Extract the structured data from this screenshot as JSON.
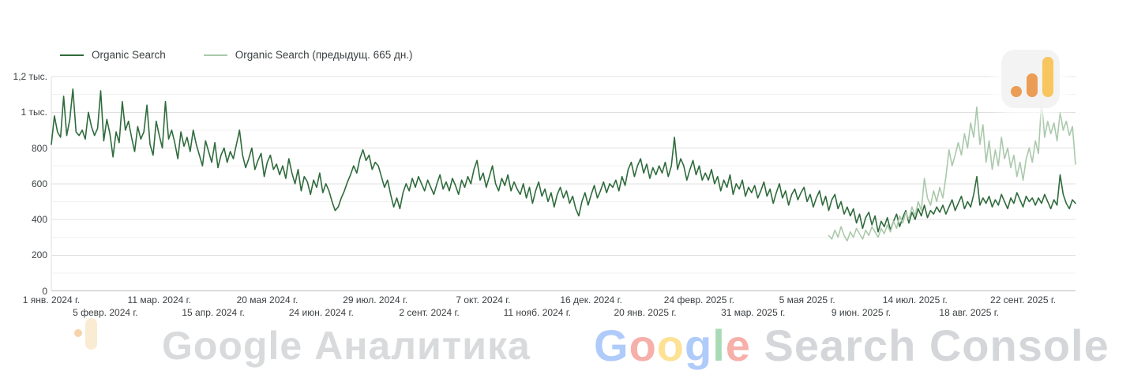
{
  "legend": {
    "items": [
      {
        "label": "Organic Search",
        "color": "#2f6b3c"
      },
      {
        "label": "Organic Search (предыдущ. 665 дн.)",
        "color": "#aac9ab"
      }
    ]
  },
  "watermarks": {
    "top_right_icon": "google-analytics-logo",
    "bottom_left_text": "Google Аналитика",
    "bottom_right_brand_letters": [
      {
        "ch": "G",
        "color": "#4285F4"
      },
      {
        "ch": "o",
        "color": "#EA4335"
      },
      {
        "ch": "o",
        "color": "#FBBC05"
      },
      {
        "ch": "g",
        "color": "#4285F4"
      },
      {
        "ch": "l",
        "color": "#34A853"
      },
      {
        "ch": "e",
        "color": "#EA4335"
      }
    ],
    "bottom_right_text_rest": " Search Console"
  },
  "chart_data": {
    "type": "line",
    "title": "",
    "xlabel": "",
    "ylabel": "",
    "grid": "horizontal",
    "legend_position": "top-left",
    "ylim": [
      0,
      1200
    ],
    "x_end_day": 664,
    "y_ticks": [
      {
        "value": 0,
        "label": "0"
      },
      {
        "value": 200,
        "label": "200"
      },
      {
        "value": 400,
        "label": "400"
      },
      {
        "value": 600,
        "label": "600"
      },
      {
        "value": 800,
        "label": "800"
      },
      {
        "value": 1000,
        "label": "1 тыс."
      },
      {
        "value": 1200,
        "label": "1,2 тыс."
      }
    ],
    "x_ticks_row1": [
      {
        "day": 0,
        "label": "1 янв. 2024 г."
      },
      {
        "day": 70,
        "label": "11 мар. 2024 г."
      },
      {
        "day": 140,
        "label": "20 мая 2024 г."
      },
      {
        "day": 210,
        "label": "29 июл. 2024 г."
      },
      {
        "day": 280,
        "label": "7 окт. 2024 г."
      },
      {
        "day": 350,
        "label": "16 дек. 2024 г."
      },
      {
        "day": 420,
        "label": "24 февр. 2025 г."
      },
      {
        "day": 490,
        "label": "5 мая 2025 г."
      },
      {
        "day": 560,
        "label": "14 июл. 2025 г."
      },
      {
        "day": 630,
        "label": "22 сент. 2025 г."
      }
    ],
    "x_ticks_row2": [
      {
        "day": 35,
        "label": "5 февр. 2024 г."
      },
      {
        "day": 105,
        "label": "15 апр. 2024 г."
      },
      {
        "day": 175,
        "label": "24 июн. 2024 г."
      },
      {
        "day": 245,
        "label": "2 сент. 2024 г."
      },
      {
        "day": 315,
        "label": "11 нояб. 2024 г."
      },
      {
        "day": 385,
        "label": "20 янв. 2025 г."
      },
      {
        "day": 455,
        "label": "31 мар. 2025 г."
      },
      {
        "day": 525,
        "label": "9 июн. 2025 г."
      },
      {
        "day": 595,
        "label": "18 авг. 2025 г."
      }
    ],
    "series": [
      {
        "name": "Organic Search",
        "color": "#2f6b3c",
        "start_day": 0,
        "step_days": 2,
        "values": [
          820,
          980,
          890,
          860,
          1090,
          870,
          960,
          1130,
          890,
          870,
          900,
          850,
          1000,
          920,
          870,
          910,
          1120,
          840,
          960,
          880,
          750,
          890,
          830,
          1060,
          900,
          950,
          860,
          780,
          920,
          850,
          890,
          1040,
          820,
          760,
          950,
          870,
          800,
          1060,
          850,
          900,
          830,
          740,
          890,
          810,
          860,
          780,
          900,
          820,
          760,
          700,
          840,
          780,
          720,
          830,
          690,
          760,
          800,
          720,
          780,
          740,
          820,
          900,
          760,
          690,
          740,
          800,
          680,
          730,
          770,
          640,
          720,
          760,
          680,
          710,
          650,
          700,
          630,
          740,
          660,
          600,
          680,
          560,
          640,
          610,
          540,
          620,
          580,
          660,
          550,
          600,
          560,
          500,
          450,
          470,
          520,
          560,
          610,
          650,
          700,
          660,
          740,
          790,
          730,
          760,
          680,
          720,
          700,
          640,
          580,
          620,
          540,
          470,
          520,
          460,
          550,
          600,
          560,
          630,
          580,
          640,
          600,
          560,
          620,
          580,
          540,
          600,
          650,
          570,
          610,
          560,
          630,
          590,
          540,
          620,
          580,
          640,
          600,
          680,
          730,
          620,
          660,
          580,
          640,
          700,
          600,
          560,
          630,
          590,
          650,
          560,
          610,
          570,
          540,
          600,
          520,
          580,
          490,
          560,
          610,
          530,
          570,
          500,
          550,
          470,
          540,
          580,
          520,
          560,
          490,
          530,
          460,
          420,
          500,
          550,
          480,
          540,
          590,
          520,
          560,
          610,
          550,
          600,
          580,
          620,
          560,
          640,
          590,
          680,
          720,
          640,
          700,
          740,
          660,
          710,
          630,
          690,
          650,
          700,
          660,
          720,
          640,
          700,
          860,
          680,
          740,
          700,
          620,
          680,
          730,
          650,
          700,
          620,
          660,
          620,
          680,
          600,
          640,
          560,
          620,
          580,
          650,
          540,
          600,
          570,
          620,
          530,
          580,
          550,
          590,
          520,
          560,
          610,
          530,
          570,
          490,
          550,
          600,
          520,
          560,
          480,
          540,
          570,
          510,
          550,
          580,
          500,
          540,
          470,
          520,
          560,
          480,
          530,
          450,
          510,
          540,
          460,
          500,
          430,
          470,
          420,
          460,
          380,
          430,
          350,
          410,
          440,
          370,
          420,
          330,
          390,
          360,
          410,
          340,
          390,
          430,
          360,
          410,
          450,
          380,
          440,
          400,
          460,
          420,
          480,
          410,
          450,
          430,
          470,
          440,
          480,
          430,
          470,
          510,
          450,
          490,
          530,
          460,
          500,
          470,
          540,
          640,
          480,
          520,
          490,
          530,
          470,
          510,
          480,
          540,
          500,
          460,
          520,
          490,
          550,
          510,
          470,
          530,
          500,
          520,
          480,
          520,
          490,
          540,
          500,
          460,
          510,
          480,
          650,
          540,
          490,
          460,
          510,
          490
        ]
      },
      {
        "name": "Organic Search (предыдущ. 665 дн.)",
        "color": "#aac9ab",
        "start_day": 504,
        "step_days": 2,
        "values": [
          310,
          290,
          340,
          300,
          360,
          310,
          280,
          330,
          300,
          350,
          320,
          290,
          340,
          310,
          360,
          330,
          300,
          350,
          320,
          370,
          330,
          390,
          350,
          420,
          380,
          440,
          400,
          470,
          420,
          500,
          450,
          630,
          520,
          480,
          560,
          500,
          580,
          520,
          640,
          790,
          700,
          760,
          830,
          760,
          880,
          800,
          940,
          860,
          1030,
          820,
          930,
          720,
          840,
          680,
          790,
          700,
          860,
          740,
          800,
          690,
          760,
          640,
          720,
          620,
          740,
          800,
          720,
          840,
          770,
          1070,
          860,
          950,
          880,
          940,
          840,
          1000,
          900,
          950,
          870,
          920,
          710
        ]
      }
    ]
  }
}
